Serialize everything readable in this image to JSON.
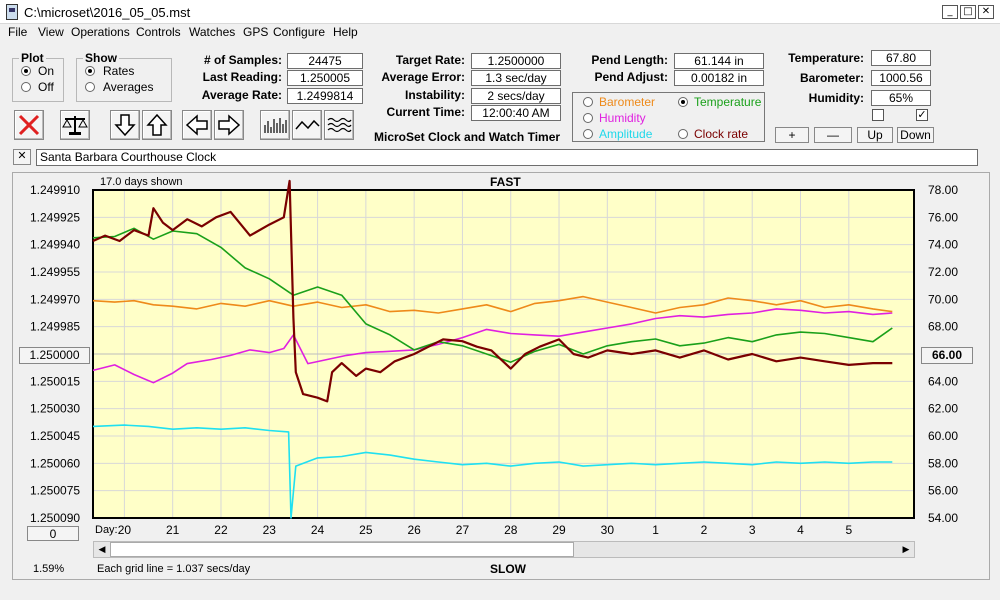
{
  "window": {
    "title": "C:\\microset\\2016_05_05.mst"
  },
  "menu": [
    "File",
    "View",
    "Operations",
    "Controls",
    "Watches",
    "GPS",
    "Configure",
    "Help"
  ],
  "plot_group": {
    "title": "Plot",
    "on": "On",
    "off": "Off"
  },
  "show_group": {
    "title": "Show",
    "rates": "Rates",
    "averages": "Averages"
  },
  "stats": {
    "samples_label": "# of Samples:",
    "samples": "24475",
    "last_reading_label": "Last Reading:",
    "last_reading": "1.250005",
    "average_rate_label": "Average Rate:",
    "average_rate": "1.2499814"
  },
  "rates": {
    "target_rate_label": "Target Rate:",
    "target_rate": "1.2500000",
    "average_error_label": "Average Error:",
    "average_error": "1.3 sec/day",
    "instability_label": "Instability:",
    "instability": "2 secs/day",
    "current_time_label": "Current Time:",
    "current_time": "12:00:40 AM"
  },
  "app_caption": "MicroSet Clock and Watch Timer",
  "pendulum": {
    "length_label": "Pend Length:",
    "length": "61.144 in",
    "adjust_label": "Pend Adjust:",
    "adjust": "0.00182 in"
  },
  "sensor_select": {
    "barometer": "Barometer",
    "temperature": "Temperature",
    "humidity": "Humidity",
    "amplitude": "Amplitude",
    "clock_rate": "Clock rate"
  },
  "environment": {
    "temperature_label": "Temperature:",
    "temperature": "67.80",
    "barometer_label": "Barometer:",
    "barometer": "1000.56",
    "humidity_label": "Humidity:",
    "humidity": "65%",
    "plus": "+",
    "minus": "—",
    "up": "Up",
    "down": "Down"
  },
  "clock_name": "Santa Barbara Courthouse Clock",
  "colors": {
    "plot_bg": "#ffffc8",
    "rate": "#7a0000",
    "temperature": "#1aa01a",
    "barometer": "#ee8a1a",
    "humidity": "#e020e0",
    "amplitude": "#20e0f0"
  },
  "plot": {
    "days_shown": "17.0 days shown",
    "fast": "FAST",
    "slow": "SLOW",
    "left_center_button": "1.250000",
    "right_center_button": "66.00",
    "bottom_left_button": "0",
    "day_prefix": "Day:",
    "percent": "1.59%",
    "grid_note": "Each grid line = 1.037 secs/day"
  },
  "chart_data": {
    "type": "line",
    "title": "",
    "x": [
      "20",
      "21",
      "22",
      "23",
      "24",
      "25",
      "26",
      "27",
      "28",
      "29",
      "30",
      "1",
      "2",
      "3",
      "4",
      "5"
    ],
    "left_axis_ticks": [
      "1.249910",
      "1.249925",
      "1.249940",
      "1.249955",
      "1.249970",
      "1.249985",
      "1.250000",
      "1.250015",
      "1.250030",
      "1.250045",
      "1.250060",
      "1.250075",
      "1.250090"
    ],
    "right_axis_ticks": [
      "78.00",
      "76.00",
      "74.00",
      "72.00",
      "70.00",
      "68.00",
      "66.00",
      "64.00",
      "62.00",
      "60.00",
      "58.00",
      "56.00",
      "54.00"
    ],
    "ylim_left": [
      1.24991,
      1.25009
    ],
    "ylim_right": [
      54,
      78
    ],
    "xlim": [
      19.35,
      36.35
    ],
    "grid": true,
    "series": [
      {
        "key": "amplitude",
        "x": [
          19.35,
          20.0,
          20.5,
          21.0,
          21.5,
          22.0,
          22.5,
          23.0,
          23.4,
          23.45,
          23.55,
          24.0,
          24.5,
          25.0,
          25.5,
          26.0,
          26.5,
          27.0,
          27.5,
          28.0,
          28.5,
          29.0,
          29.5,
          30.0,
          30.5,
          31.0,
          31.5,
          32.0,
          32.5,
          33.0,
          33.5,
          34.0,
          34.5,
          35.0,
          35.5,
          35.9
        ],
        "values": [
          60.7,
          60.8,
          60.7,
          60.5,
          60.6,
          60.5,
          60.6,
          60.4,
          60.3,
          54.0,
          57.8,
          58.4,
          58.5,
          58.8,
          58.6,
          58.3,
          58.1,
          57.9,
          58.0,
          57.8,
          58.0,
          58.1,
          57.8,
          57.9,
          58.0,
          57.9,
          58.0,
          58.1,
          58.0,
          57.9,
          58.1,
          58.0,
          58.1,
          58.0,
          58.1,
          58.1
        ]
      },
      {
        "key": "humidity",
        "x": [
          19.35,
          19.8,
          20.2,
          20.6,
          21.0,
          21.3,
          21.8,
          22.2,
          22.6,
          23.0,
          23.3,
          23.5,
          23.8,
          24.2,
          24.6,
          25.0,
          25.5,
          26.0,
          26.5,
          27.0,
          27.5,
          28.0,
          28.5,
          29.0,
          29.5,
          30.0,
          30.5,
          31.0,
          31.5,
          32.0,
          32.5,
          33.0,
          33.5,
          34.0,
          34.5,
          35.0,
          35.5,
          35.9
        ],
        "values": [
          64.8,
          65.2,
          64.5,
          63.9,
          64.6,
          65.3,
          65.6,
          65.9,
          66.3,
          66.1,
          66.4,
          67.4,
          65.3,
          65.6,
          65.9,
          66.1,
          66.2,
          66.3,
          66.7,
          67.2,
          67.8,
          67.5,
          67.4,
          67.3,
          67.6,
          67.9,
          68.2,
          68.6,
          68.8,
          68.7,
          68.9,
          69.0,
          69.3,
          69.2,
          69.0,
          69.1,
          68.9,
          69.0
        ]
      },
      {
        "key": "barometer",
        "x": [
          19.35,
          19.8,
          20.2,
          20.6,
          21.0,
          21.5,
          22.0,
          22.5,
          23.0,
          23.5,
          24.0,
          24.5,
          25.0,
          25.5,
          26.0,
          26.5,
          27.0,
          27.5,
          28.0,
          28.5,
          29.0,
          29.5,
          30.0,
          30.5,
          31.0,
          31.5,
          32.0,
          32.5,
          33.0,
          33.5,
          34.0,
          34.5,
          35.0,
          35.5,
          35.9
        ],
        "values": [
          69.9,
          69.8,
          69.9,
          69.6,
          69.5,
          69.3,
          69.7,
          69.5,
          69.9,
          69.5,
          69.8,
          69.4,
          69.6,
          69.1,
          69.2,
          69.0,
          69.3,
          69.6,
          69.1,
          69.7,
          69.9,
          70.2,
          69.8,
          69.4,
          69.0,
          69.4,
          69.6,
          70.1,
          69.9,
          69.6,
          69.9,
          69.4,
          69.6,
          69.3,
          69.1
        ]
      },
      {
        "key": "temperature",
        "x": [
          19.35,
          19.8,
          20.2,
          20.6,
          21.0,
          21.5,
          22.0,
          22.5,
          23.0,
          23.5,
          24.0,
          24.5,
          25.0,
          25.5,
          26.0,
          26.5,
          27.0,
          27.5,
          28.0,
          28.5,
          29.0,
          29.5,
          30.0,
          30.5,
          31.0,
          31.5,
          32.0,
          32.5,
          33.0,
          33.5,
          34.0,
          34.5,
          35.0,
          35.5,
          35.9
        ],
        "values": [
          74.5,
          74.6,
          75.2,
          74.4,
          75.0,
          74.8,
          73.8,
          72.3,
          71.5,
          70.3,
          70.9,
          70.3,
          68.2,
          67.4,
          66.3,
          66.9,
          66.6,
          66.0,
          65.4,
          66.2,
          66.7,
          66.0,
          66.6,
          66.9,
          67.1,
          66.6,
          66.8,
          67.2,
          66.9,
          67.4,
          67.6,
          67.5,
          67.2,
          66.9,
          67.9
        ]
      },
      {
        "key": "rate",
        "x": [
          19.35,
          19.6,
          19.9,
          20.2,
          20.5,
          20.6,
          20.8,
          21.0,
          21.3,
          21.6,
          21.9,
          22.2,
          22.6,
          23.0,
          23.3,
          23.42,
          23.5,
          23.55,
          23.7,
          24.0,
          24.2,
          24.3,
          24.5,
          24.8,
          25.0,
          25.3,
          25.6,
          26.0,
          26.3,
          26.6,
          27.0,
          27.3,
          27.6,
          28.0,
          28.3,
          28.6,
          29.0,
          29.3,
          29.6,
          30.0,
          30.5,
          31.0,
          31.5,
          32.0,
          32.5,
          33.0,
          33.5,
          34.0,
          34.5,
          35.0,
          35.5,
          35.9
        ],
        "values": [
          1.249938,
          1.249935,
          1.249938,
          1.249932,
          1.249935,
          1.24992,
          1.249928,
          1.249932,
          1.249926,
          1.24993,
          1.249925,
          1.249922,
          1.249935,
          1.249929,
          1.249925,
          1.249905,
          1.24998,
          1.25001,
          1.250022,
          1.250024,
          1.250026,
          1.25001,
          1.250005,
          1.250012,
          1.250008,
          1.25001,
          1.250004,
          1.25,
          1.249996,
          1.249992,
          1.249993,
          1.249996,
          1.249998,
          1.250008,
          1.25,
          1.249996,
          1.249992,
          1.25,
          1.250002,
          1.249998,
          1.25,
          1.249998,
          1.250002,
          1.249998,
          1.250003,
          1.25,
          1.250004,
          1.250002,
          1.250004,
          1.250006,
          1.250005,
          1.250005
        ]
      }
    ]
  }
}
